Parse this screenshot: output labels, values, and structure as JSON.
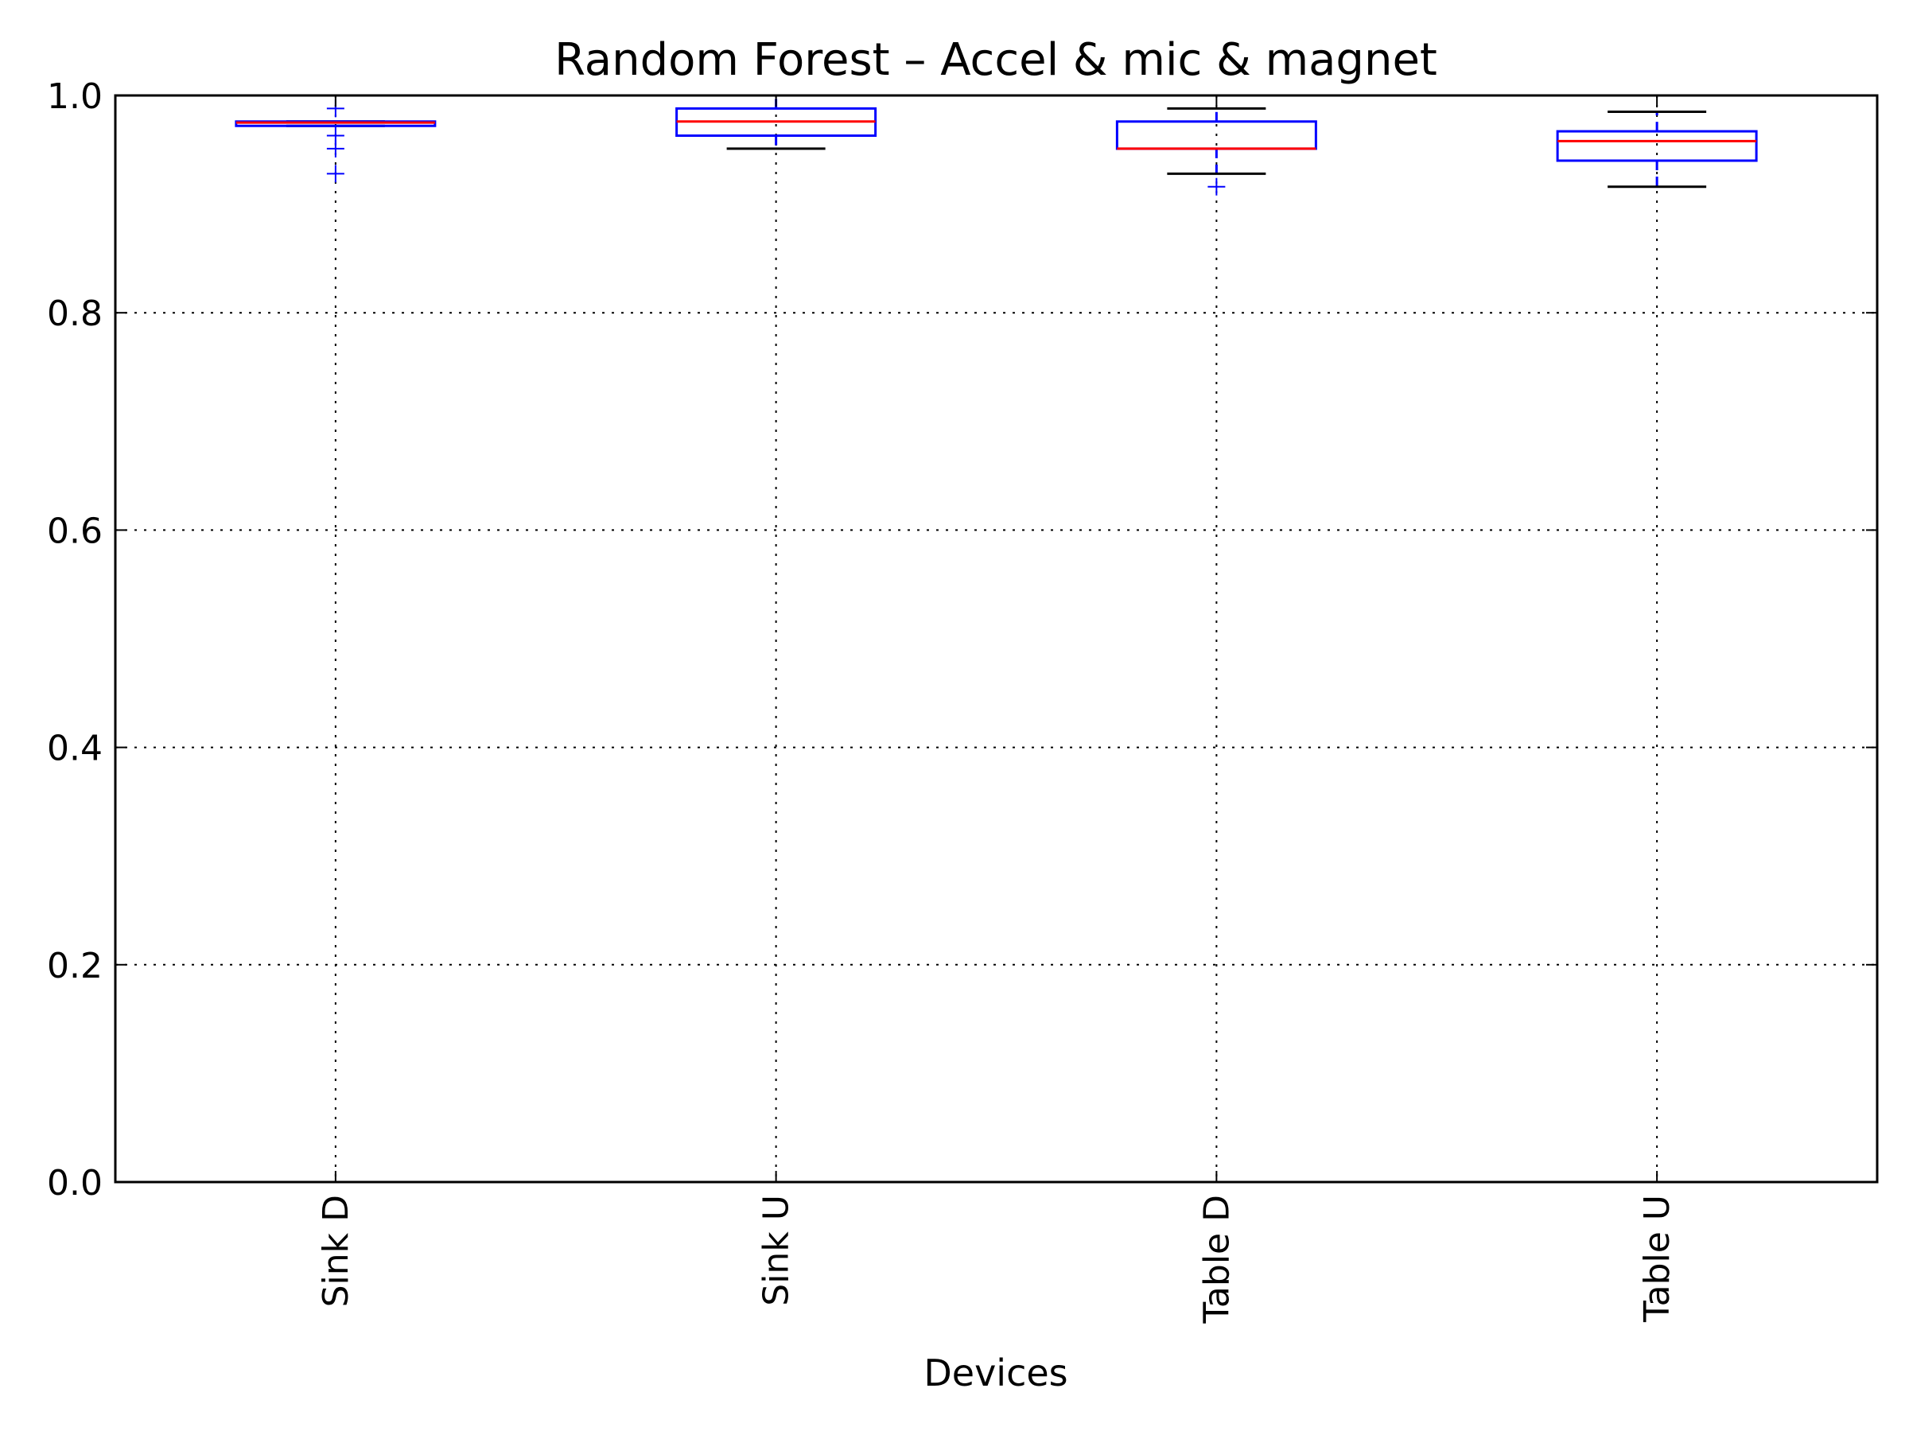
{
  "chart_data": {
    "type": "boxplot",
    "title": "Random Forest – Accel & mic & magnet",
    "xlabel": "Devices",
    "ylabel": "",
    "ylim": [
      0.0,
      1.0
    ],
    "yticks": [
      "0.0",
      "0.2",
      "0.4",
      "0.6",
      "0.8",
      "1.0"
    ],
    "grid": true,
    "categories": [
      "Sink D",
      "Sink U",
      "Table D",
      "Table U"
    ],
    "boxes": [
      {
        "name": "Sink D",
        "whisker_low": 0.972,
        "q1": 0.972,
        "median": 0.975,
        "q3": 0.976,
        "whisker_high": 0.976,
        "outliers": [
          0.928,
          0.951,
          0.963,
          0.988
        ]
      },
      {
        "name": "Sink U",
        "whisker_low": 0.951,
        "q1": 0.963,
        "median": 0.976,
        "q3": 0.988,
        "whisker_high": 1.0,
        "outliers": []
      },
      {
        "name": "Table D",
        "whisker_low": 0.928,
        "q1": 0.951,
        "median": 0.951,
        "q3": 0.976,
        "whisker_high": 0.988,
        "outliers": [
          0.916
        ]
      },
      {
        "name": "Table U",
        "whisker_low": 0.916,
        "q1": 0.94,
        "median": 0.958,
        "q3": 0.967,
        "whisker_high": 0.985,
        "outliers": []
      }
    ],
    "colors": {
      "box": "#0000ff",
      "median": "#ff0000",
      "whisker_cap": "#000000",
      "outlier": "#0000ff",
      "grid": "#000000",
      "axes": "#000000"
    }
  }
}
